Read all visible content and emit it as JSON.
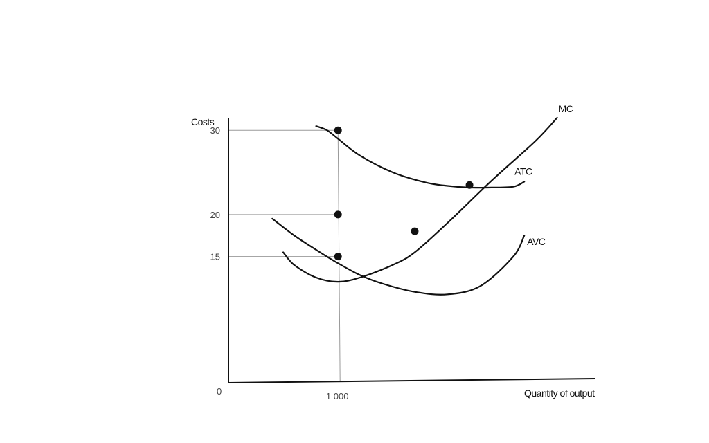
{
  "chart_data": {
    "type": "line",
    "title": "",
    "ylabel": "Costs",
    "xlabel": "Quantity of output",
    "origin_label": "0",
    "y_ticks": [
      {
        "value": 30,
        "label": "30"
      },
      {
        "value": 20,
        "label": "20"
      },
      {
        "value": 15,
        "label": "15"
      }
    ],
    "x_ticks": [
      {
        "value": 1000,
        "label": "1 000"
      }
    ],
    "xlim": [
      0,
      3350
    ],
    "ylim": [
      0,
      31.5
    ],
    "grid": false,
    "series": [
      {
        "name": "MC",
        "x": [
          500,
          600,
          800,
          1000,
          1200,
          1500,
          1700,
          2000,
          2400,
          2800,
          3000
        ],
        "y": [
          15.5,
          14.0,
          12.5,
          12.0,
          12.5,
          14.0,
          15.5,
          19.0,
          24.0,
          28.7,
          31.5
        ]
      },
      {
        "name": "ATC",
        "x": [
          800,
          900,
          1000,
          1200,
          1500,
          1800,
          2000,
          2200,
          2400,
          2600,
          2700
        ],
        "y": [
          30.5,
          30.0,
          29.0,
          27.0,
          25.0,
          23.8,
          23.4,
          23.2,
          23.2,
          23.3,
          23.9
        ]
      },
      {
        "name": "AVC",
        "x": [
          400,
          600,
          800,
          1000,
          1200,
          1400,
          1700,
          2000,
          2300,
          2600,
          2700
        ],
        "y": [
          19.5,
          17.5,
          15.8,
          14.2,
          12.8,
          11.8,
          10.8,
          10.5,
          11.5,
          15.0,
          17.5
        ]
      }
    ],
    "points": [
      {
        "x": 1000,
        "y": 30
      },
      {
        "x": 1000,
        "y": 20
      },
      {
        "x": 1000,
        "y": 15
      },
      {
        "x": 1700,
        "y": 18
      },
      {
        "x": 2200,
        "y": 23.5
      }
    ],
    "guides": [
      {
        "y": 30,
        "x": 1000
      },
      {
        "y": 20,
        "x": 1000
      },
      {
        "y": 15,
        "x": 1000
      }
    ]
  }
}
